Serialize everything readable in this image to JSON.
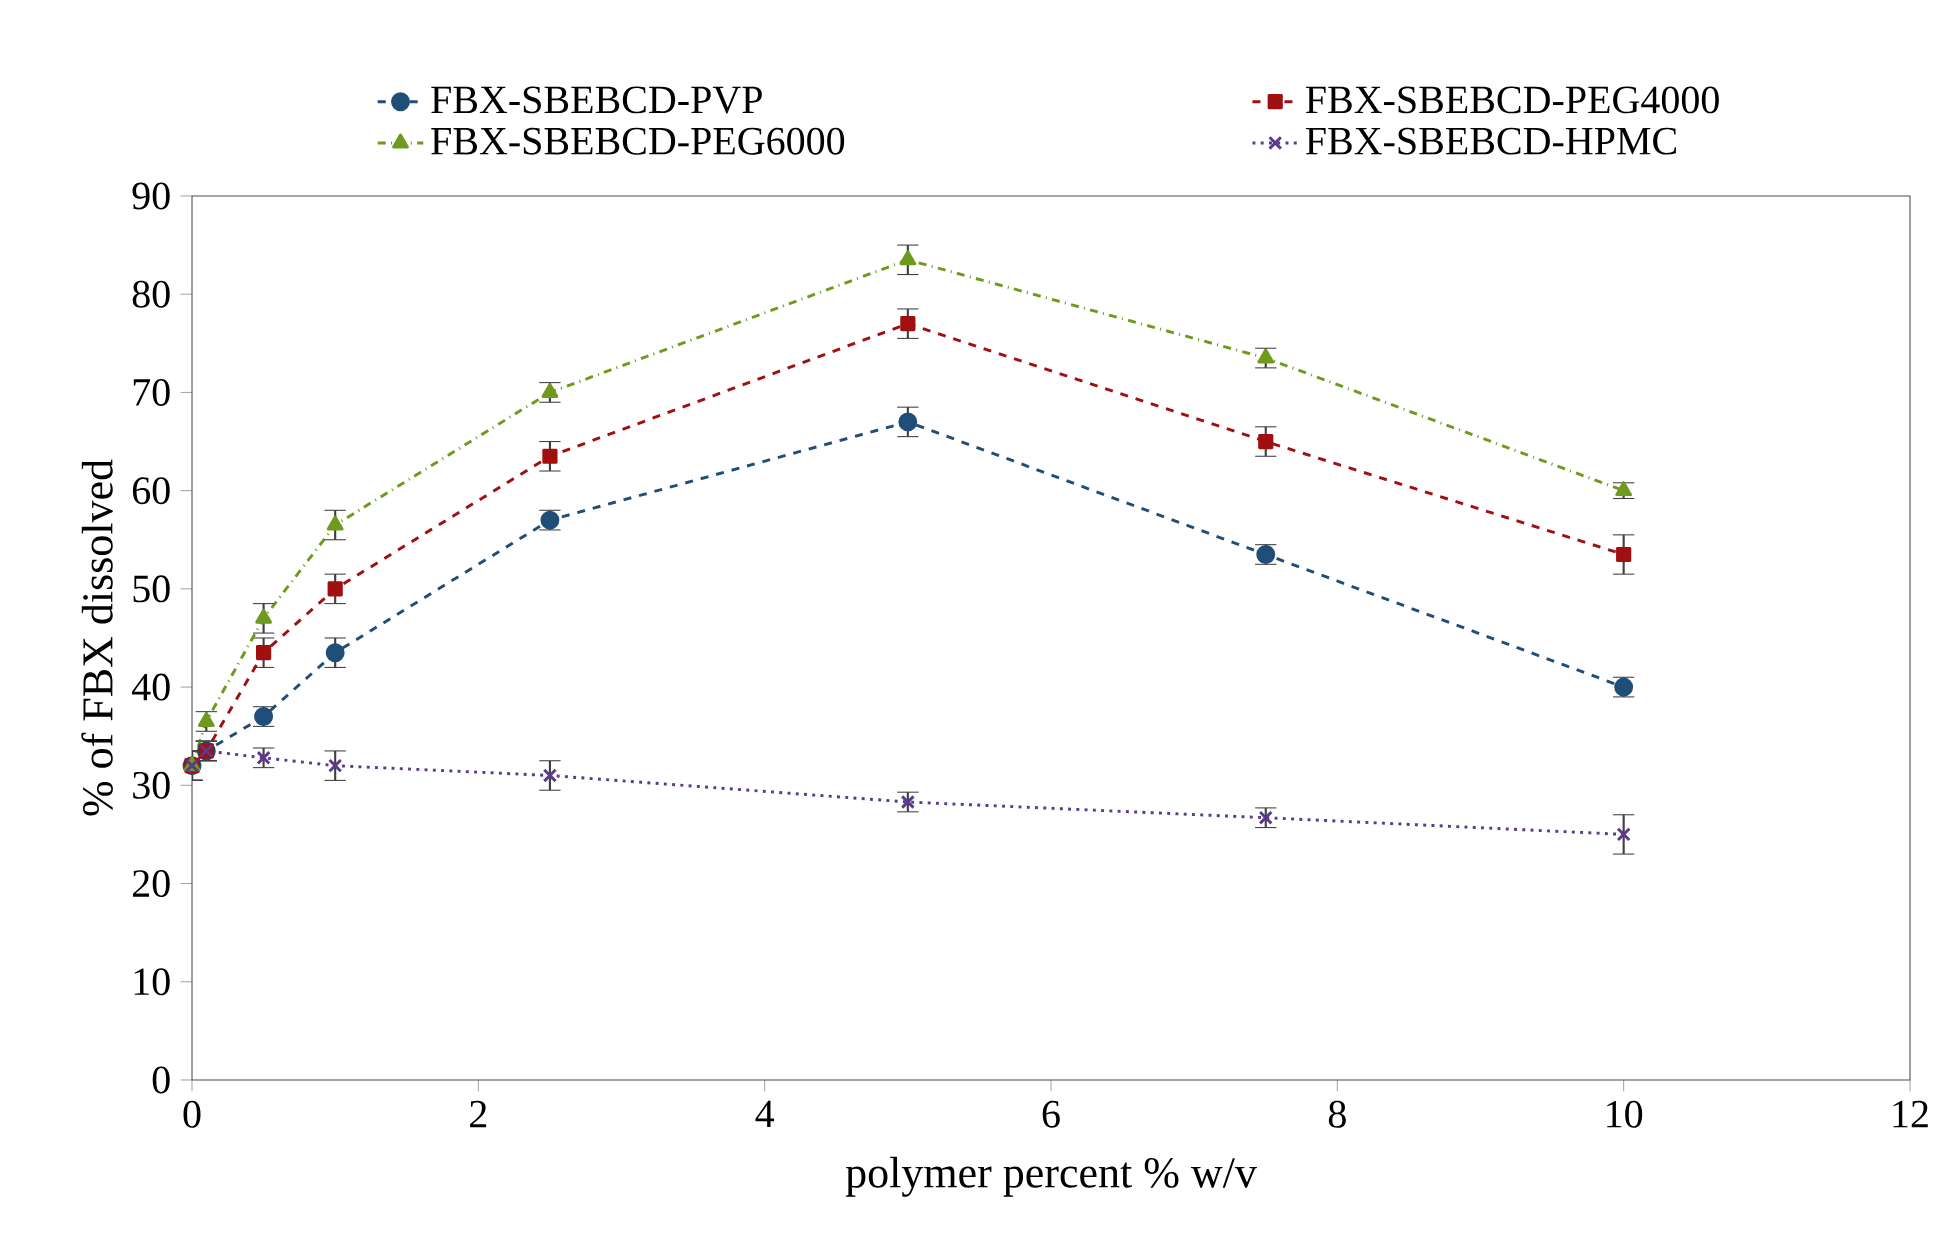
{
  "chart_data": {
    "type": "line",
    "xlabel": "polymer percent % w/v",
    "ylabel": "% of FBX dissolved",
    "x": [
      0,
      0.1,
      0.5,
      1,
      2.5,
      5,
      7.5,
      10
    ],
    "series": [
      {
        "name": "FBX-SBEBCD-PVP",
        "color": "#1f4e79",
        "marker": "circle",
        "line_style": "dashed",
        "values": [
          32,
          33.5,
          37,
          43.5,
          57,
          67,
          53.5,
          40
        ],
        "errors": [
          1.5,
          1,
          1,
          1.5,
          1,
          1.5,
          1,
          1
        ]
      },
      {
        "name": "FBX-SBEBCD-PEG4000",
        "color": "#a01010",
        "marker": "square",
        "line_style": "dashed",
        "values": [
          32,
          33.5,
          43.5,
          50,
          63.5,
          77,
          65,
          53.5
        ],
        "errors": [
          1.5,
          1,
          1.5,
          1.5,
          1.5,
          1.5,
          1.5,
          2
        ]
      },
      {
        "name": "FBX-SBEBCD-PEG6000",
        "color": "#6f9a1e",
        "marker": "triangle",
        "line_style": "dashdot",
        "values": [
          32,
          36.5,
          47,
          56.5,
          70,
          83.5,
          73.5,
          60
        ],
        "errors": [
          1.5,
          1,
          1.5,
          1.5,
          1,
          1.5,
          1,
          0.8
        ]
      },
      {
        "name": "FBX-SBEBCD-HPMC",
        "color": "#5b3a8c",
        "marker": "cross",
        "line_style": "dotted",
        "values": [
          32,
          33.5,
          32.8,
          32,
          31,
          28.3,
          26.7,
          25
        ],
        "errors": [
          1.5,
          1,
          1,
          1.5,
          1.5,
          1,
          1,
          2
        ]
      }
    ],
    "xlim": [
      0,
      12
    ],
    "xticks": [
      0,
      2,
      4,
      6,
      8,
      10,
      12
    ],
    "ylim": [
      0,
      90
    ],
    "yticks": [
      0,
      10,
      20,
      30,
      40,
      50,
      60,
      70,
      80,
      90
    ],
    "grid": false,
    "legend": "top"
  }
}
